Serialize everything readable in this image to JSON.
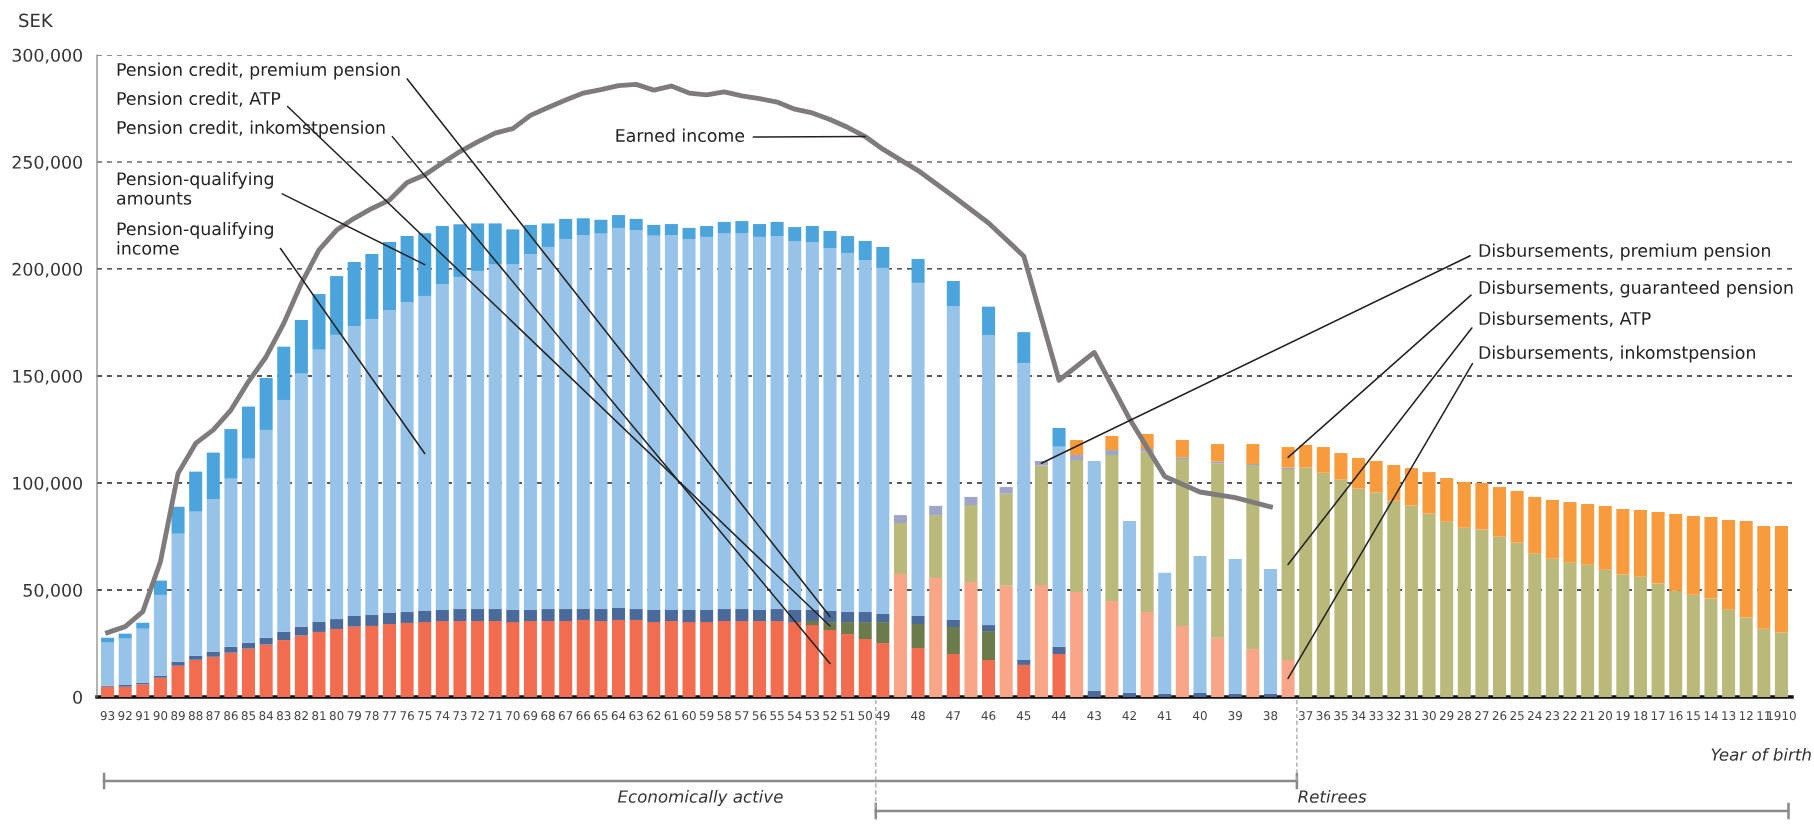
{
  "chart_data": {
    "type": "bar",
    "stacked": true,
    "ylabel": "SEK",
    "xlabel": "Year of birth",
    "categories": [
      "93",
      "92",
      "91",
      "90",
      "89",
      "88",
      "87",
      "86",
      "85",
      "84",
      "83",
      "82",
      "81",
      "80",
      "79",
      "78",
      "77",
      "76",
      "75",
      "74",
      "73",
      "72",
      "71",
      "70",
      "69",
      "68",
      "67",
      "66",
      "65",
      "64",
      "63",
      "62",
      "61",
      "60",
      "59",
      "58",
      "57",
      "56",
      "55",
      "54",
      "53",
      "52",
      "51",
      "50",
      "49",
      null,
      "48",
      null,
      "47",
      null,
      "46",
      null,
      "45",
      null,
      "44",
      null,
      "43",
      null,
      "42",
      null,
      "41",
      null,
      "40",
      null,
      "39",
      null,
      "38",
      null,
      "37",
      "36",
      "35",
      "34",
      "33",
      "32",
      "31",
      "30",
      "29",
      "28",
      "27",
      "26",
      "25",
      "24",
      "23",
      "22",
      "21",
      "20",
      "19",
      "18",
      "17",
      "16",
      "15",
      "14",
      "13",
      "12",
      "11",
      "1910"
    ],
    "ylim": [
      0,
      300000
    ],
    "yticks": [
      0,
      {
        "value": 50000,
        "label": "50,000"
      },
      {
        "value": 100000,
        "label": "100,000"
      },
      {
        "value": 150000,
        "label": "150,000"
      },
      {
        "value": 200000,
        "label": "200,000"
      },
      {
        "value": 250000,
        "label": "250,000"
      },
      {
        "value": 300000,
        "label": "300,000"
      }
    ],
    "grid": "y",
    "series": [
      {
        "name": "Pension credit, inkomstpension",
        "color": "#f26c4f",
        "values": [
          4800,
          4800,
          5900,
          9000,
          14600,
          17400,
          18800,
          20700,
          22600,
          24500,
          26600,
          28700,
          30400,
          31800,
          32900,
          33200,
          34100,
          34600,
          35000,
          35500,
          35500,
          35500,
          35500,
          35000,
          35500,
          35500,
          35500,
          36000,
          35500,
          36000,
          36000,
          35000,
          35500,
          35000,
          35000,
          35500,
          35500,
          35500,
          35500,
          35000,
          33600,
          31300,
          29400,
          27100,
          25200,
          null,
          22900,
          null,
          20100,
          null,
          17300,
          null,
          15000,
          null,
          20100,
          null,
          null,
          null,
          null,
          null,
          null,
          null,
          null,
          null,
          null,
          null,
          null,
          null,
          null,
          null,
          null,
          null,
          null,
          null,
          null,
          null,
          null,
          null,
          null,
          null,
          null,
          null,
          null,
          null,
          null,
          null,
          null,
          null,
          null,
          null,
          null,
          null,
          null,
          null,
          null,
          null
        ]
      },
      {
        "name": "Pension credit, ATP",
        "color": "#6b7b4b",
        "values": [
          null,
          null,
          null,
          null,
          null,
          null,
          null,
          null,
          null,
          null,
          null,
          null,
          null,
          null,
          null,
          null,
          null,
          null,
          null,
          null,
          null,
          null,
          null,
          null,
          null,
          null,
          null,
          null,
          null,
          null,
          null,
          null,
          null,
          null,
          null,
          null,
          null,
          null,
          null,
          null,
          1900,
          3700,
          5600,
          7900,
          9800,
          null,
          11200,
          null,
          12600,
          null,
          13500,
          null,
          null,
          null,
          null,
          null,
          null,
          null,
          null,
          null,
          null,
          null,
          null,
          null,
          null,
          null,
          null,
          null,
          null,
          null,
          null,
          null,
          null,
          null,
          null,
          null,
          null,
          null,
          null,
          null,
          null,
          null,
          null,
          null,
          null,
          null,
          null,
          null,
          null,
          null,
          null,
          null,
          null,
          null,
          null,
          null
        ]
      },
      {
        "name": "Pension credit, premium pension",
        "color": "#4a6a9b",
        "values": [
          500,
          800,
          800,
          1000,
          1900,
          1900,
          2400,
          2800,
          2800,
          3200,
          3900,
          4200,
          4800,
          4600,
          5000,
          5100,
          5200,
          5100,
          5200,
          5200,
          5600,
          5600,
          5600,
          5700,
          5200,
          5600,
          5600,
          5100,
          5600,
          5600,
          5100,
          5700,
          5200,
          5700,
          5700,
          5600,
          5600,
          5200,
          5600,
          5700,
          5200,
          5200,
          4700,
          4700,
          3800,
          null,
          3800,
          null,
          3300,
          null,
          2800,
          null,
          2300,
          null,
          3400,
          null,
          3000,
          null,
          2000,
          null,
          1600,
          null,
          1900,
          null,
          1600,
          null,
          1600,
          null,
          null,
          null,
          null,
          null,
          null,
          null,
          null,
          null,
          null,
          null,
          null,
          null,
          null,
          null,
          null,
          null,
          null,
          null,
          null,
          null,
          null,
          null,
          null,
          null,
          null,
          null,
          null,
          null
        ]
      },
      {
        "name": "Pension-qualifying\nincome",
        "color": "#97c3e8",
        "values": [
          20100,
          21700,
          25200,
          37700,
          59800,
          67300,
          71300,
          78500,
          86000,
          97100,
          108300,
          118200,
          127100,
          132800,
          135500,
          138200,
          141500,
          144900,
          147200,
          152300,
          155200,
          158000,
          161200,
          161600,
          166300,
          169200,
          172900,
          174800,
          175400,
          177600,
          177100,
          174900,
          175200,
          173300,
          174300,
          175700,
          175700,
          174300,
          174300,
          172400,
          171900,
          169600,
          167800,
          164500,
          161700,
          null,
          155600,
          null,
          146700,
          null,
          135400,
          null,
          138700,
          null,
          93500,
          null,
          107300,
          null,
          80200,
          null,
          56500,
          null,
          64000,
          null,
          62900,
          null,
          58200,
          null,
          null,
          null,
          null,
          null,
          null,
          null,
          null,
          null,
          null,
          null,
          null,
          null,
          null,
          null,
          null,
          null,
          null,
          null,
          null,
          null,
          null,
          null,
          null,
          null,
          null,
          null,
          null,
          null
        ]
      },
      {
        "name": "Pension-qualifying\namounts",
        "color": "#4ba4dc",
        "values": [
          2300,
          2300,
          2800,
          6700,
          12600,
          18700,
          21700,
          23200,
          24300,
          24300,
          24900,
          25100,
          26000,
          27500,
          29900,
          30500,
          31800,
          30800,
          29300,
          27100,
          24600,
          22200,
          19000,
          16200,
          13600,
          11000,
          9400,
          7800,
          6500,
          6000,
          5200,
          5000,
          5100,
          5200,
          5100,
          5200,
          5600,
          6000,
          6600,
          6500,
          7500,
          8000,
          7900,
          8900,
          9800,
          null,
          11200,
          null,
          11700,
          null,
          13400,
          null,
          14500,
          null,
          8700,
          null,
          null,
          null,
          null,
          null,
          null,
          null,
          null,
          null,
          null,
          null,
          null,
          null,
          null,
          null,
          null,
          null,
          null,
          null,
          null,
          null,
          null,
          null,
          null,
          null,
          null,
          null,
          null,
          null,
          null,
          null,
          null,
          null,
          null,
          null,
          null,
          null,
          null,
          null,
          null,
          null
        ]
      },
      {
        "name": "Disbursements, inkomstpension",
        "color": "#f8a687",
        "values": [
          null,
          null,
          null,
          null,
          null,
          null,
          null,
          null,
          null,
          null,
          null,
          null,
          null,
          null,
          null,
          null,
          null,
          null,
          null,
          null,
          null,
          null,
          null,
          null,
          null,
          null,
          null,
          null,
          null,
          null,
          null,
          null,
          null,
          null,
          null,
          null,
          null,
          null,
          null,
          null,
          null,
          null,
          null,
          null,
          null,
          57500,
          null,
          55600,
          null,
          53700,
          null,
          52000,
          null,
          52300,
          null,
          49100,
          null,
          44900,
          null,
          39700,
          null,
          33200,
          null,
          27700,
          null,
          22400,
          null,
          17300,
          null,
          null,
          null,
          null,
          null,
          null,
          null,
          null,
          null,
          null,
          null,
          null,
          null,
          null,
          null,
          null,
          null,
          null,
          null,
          null,
          null,
          null,
          null,
          null,
          null,
          null,
          null,
          null
        ]
      },
      {
        "name": "Disbursements, ATP",
        "color": "#b9b97b",
        "values": [
          null,
          null,
          null,
          null,
          null,
          null,
          null,
          null,
          null,
          null,
          null,
          null,
          null,
          null,
          null,
          null,
          null,
          null,
          null,
          null,
          null,
          null,
          null,
          null,
          null,
          null,
          null,
          null,
          null,
          null,
          null,
          null,
          null,
          null,
          null,
          null,
          null,
          null,
          null,
          null,
          null,
          null,
          null,
          null,
          null,
          23800,
          null,
          29400,
          null,
          36000,
          null,
          43000,
          null,
          55800,
          null,
          61600,
          null,
          68200,
          null,
          74900,
          null,
          78000,
          null,
          81500,
          null,
          86000,
          null,
          89200,
          107200,
          104800,
          101600,
          97400,
          95500,
          91700,
          89400,
          85700,
          81900,
          79100,
          78200,
          74900,
          72100,
          67000,
          64600,
          62800,
          61800,
          59500,
          57200,
          56200,
          53000,
          49700,
          47800,
          46000,
          40800,
          37100,
          31900,
          30100
        ]
      },
      {
        "name": "Disbursements, premium pension",
        "color": "#9ea5c8",
        "values": [
          null,
          null,
          null,
          null,
          null,
          null,
          null,
          null,
          null,
          null,
          null,
          null,
          null,
          null,
          null,
          null,
          null,
          null,
          null,
          null,
          null,
          null,
          null,
          null,
          null,
          null,
          null,
          null,
          null,
          null,
          null,
          null,
          null,
          null,
          null,
          null,
          null,
          null,
          null,
          null,
          null,
          null,
          null,
          null,
          null,
          3700,
          null,
          4300,
          null,
          3800,
          null,
          3100,
          null,
          2200,
          null,
          2400,
          null,
          2300,
          null,
          1300,
          null,
          800,
          null,
          800,
          null,
          500,
          null,
          700,
          null,
          null,
          null,
          null,
          null,
          null,
          null,
          null,
          null,
          null,
          null,
          null,
          null,
          null,
          null,
          null,
          null,
          null,
          null,
          null,
          null,
          null,
          null,
          null,
          null,
          null,
          null,
          null
        ]
      },
      {
        "name": "Disbursements, guaranteed pension",
        "color": "#f89b3c",
        "values": [
          null,
          null,
          null,
          null,
          null,
          null,
          null,
          null,
          null,
          null,
          null,
          null,
          null,
          null,
          null,
          null,
          null,
          null,
          null,
          null,
          null,
          null,
          null,
          null,
          null,
          null,
          null,
          null,
          null,
          null,
          null,
          null,
          null,
          null,
          null,
          null,
          null,
          null,
          null,
          null,
          null,
          null,
          null,
          null,
          null,
          null,
          null,
          null,
          null,
          null,
          null,
          null,
          null,
          null,
          null,
          7000,
          null,
          6600,
          null,
          7000,
          null,
          8100,
          null,
          8200,
          null,
          9300,
          null,
          9600,
          10600,
          12000,
          12400,
          14300,
          14800,
          16700,
          17600,
          19400,
          20400,
          21400,
          21800,
          23200,
          24200,
          26500,
          27500,
          28300,
          28400,
          29800,
          30700,
          31200,
          33400,
          35800,
          36800,
          38100,
          41900,
          45100,
          48000,
          49800
        ]
      },
      {
        "name": "Earned income",
        "type": "line",
        "color": "#7f7b7b",
        "values": [
          30100,
          32900,
          39900,
          63200,
          104500,
          118500,
          124800,
          134100,
          147400,
          159000,
          174600,
          193300,
          208900,
          218200,
          223700,
          228300,
          232200,
          240400,
          243900,
          249500,
          254900,
          259400,
          263500,
          265600,
          271800,
          275500,
          279000,
          282200,
          283800,
          285700,
          286300,
          283600,
          285500,
          282200,
          281400,
          282800,
          280900,
          279600,
          278000,
          274700,
          272900,
          269900,
          266200,
          261900,
          256000,
          null,
          246000,
          null,
          234000,
          null,
          221500,
          null,
          206000,
          null,
          148000,
          null,
          161000,
          null,
          130000,
          null,
          103000,
          null,
          95800,
          null,
          93200,
          null,
          88900,
          null,
          null,
          null,
          null,
          null,
          null,
          null,
          null,
          null,
          null,
          null,
          null,
          null,
          null,
          null,
          null,
          null,
          null,
          null,
          null,
          null,
          null,
          null,
          null,
          null,
          null,
          null,
          null,
          null
        ]
      }
    ],
    "annotations": [
      "Economically active",
      "Retirees"
    ]
  }
}
